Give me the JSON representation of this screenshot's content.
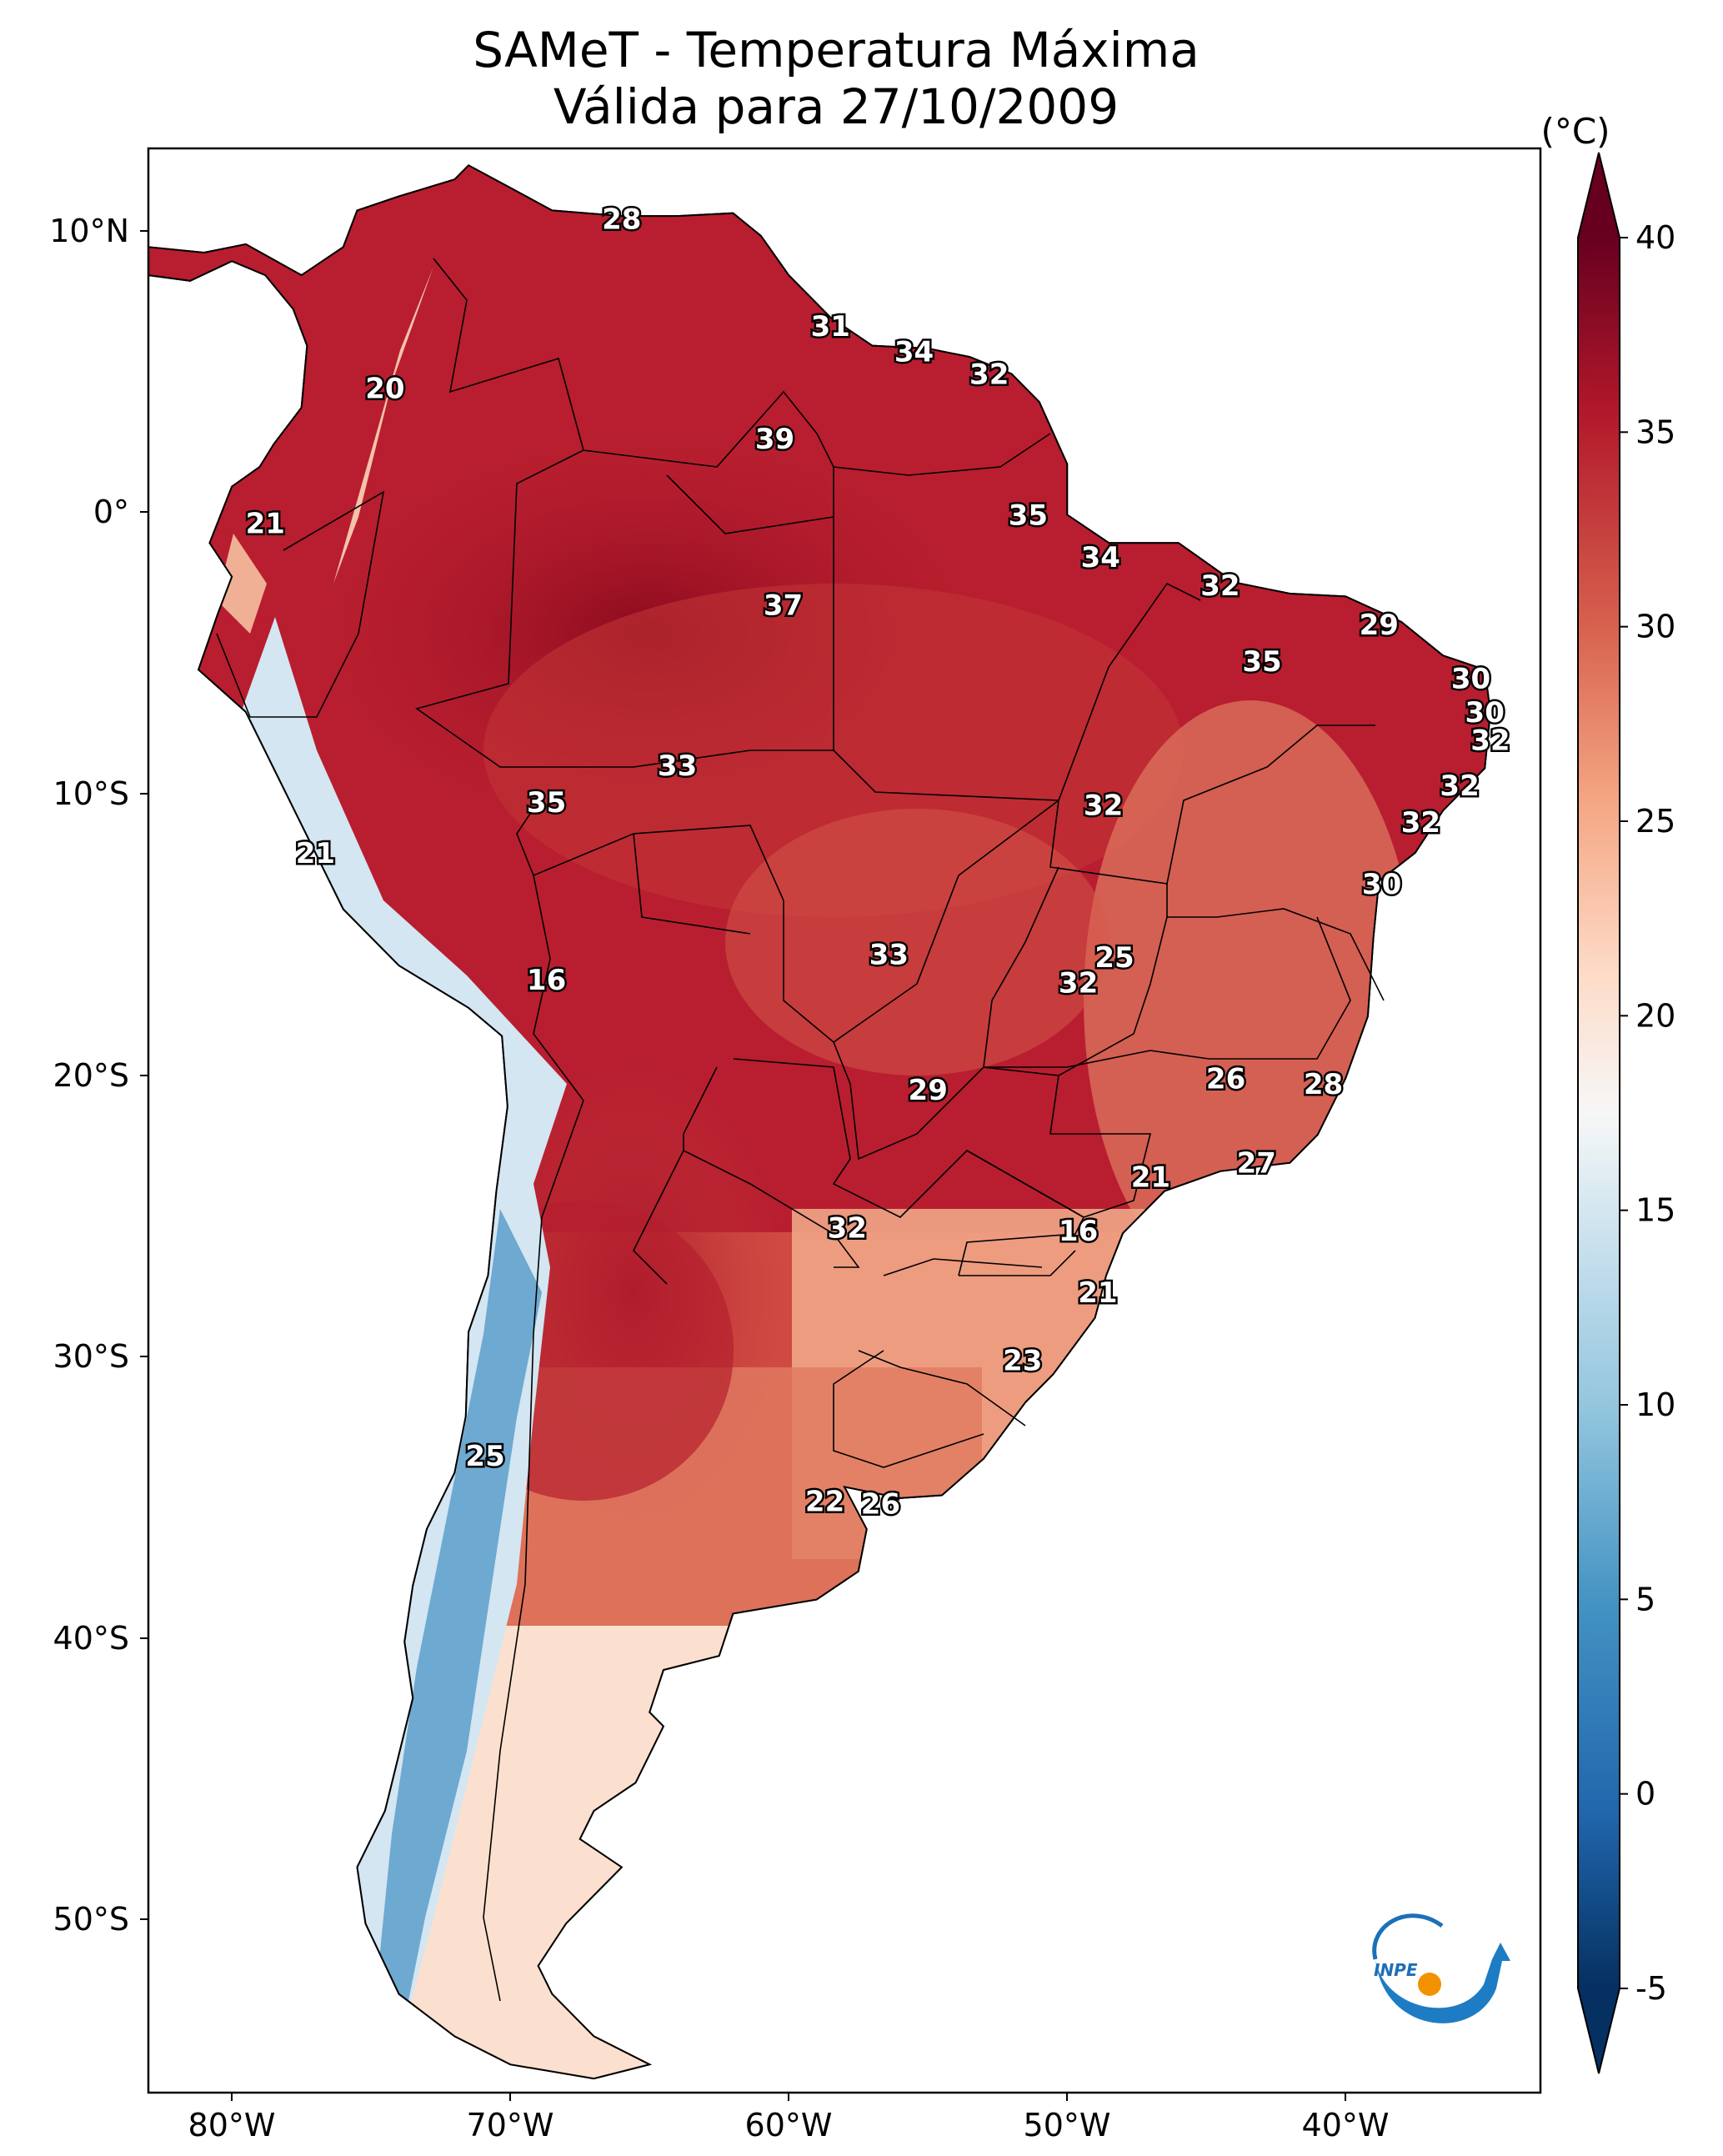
{
  "title": {
    "line1": "SAMeT - Temperatura Máxima",
    "line2": "Válida para 27/10/2009"
  },
  "colorbar": {
    "unit": "(°C)",
    "ticks": [
      "40",
      "35",
      "30",
      "25",
      "20",
      "15",
      "10",
      "5",
      "0",
      "-5"
    ],
    "range": [
      -5,
      40
    ]
  },
  "axes": {
    "lat_ticks": [
      "10°N",
      "0°",
      "10°S",
      "20°S",
      "30°S",
      "40°S",
      "50°S"
    ],
    "lon_ticks": [
      "80°W",
      "70°W",
      "60°W",
      "50°W",
      "40°W"
    ],
    "lat_range": [
      -56,
      13
    ],
    "lon_range": [
      -83,
      -33
    ]
  },
  "logo": {
    "name": "inpe-logo",
    "text": "INPE"
  },
  "labels": [
    {
      "text": "28",
      "lon": -66.0,
      "lat": 10.5
    },
    {
      "text": "20",
      "lon": -74.5,
      "lat": 4.5
    },
    {
      "text": "31",
      "lon": -58.5,
      "lat": 6.7
    },
    {
      "text": "34",
      "lon": -55.5,
      "lat": 5.8
    },
    {
      "text": "32",
      "lon": -52.8,
      "lat": 5.0
    },
    {
      "text": "39",
      "lon": -60.5,
      "lat": 2.7
    },
    {
      "text": "21",
      "lon": -78.8,
      "lat": -0.3
    },
    {
      "text": "35",
      "lon": -51.4,
      "lat": 0.0
    },
    {
      "text": "34",
      "lon": -48.8,
      "lat": -1.5
    },
    {
      "text": "37",
      "lon": -60.2,
      "lat": -3.2
    },
    {
      "text": "32",
      "lon": -44.5,
      "lat": -2.5
    },
    {
      "text": "29",
      "lon": -38.8,
      "lat": -3.9
    },
    {
      "text": "35",
      "lon": -43.0,
      "lat": -5.2
    },
    {
      "text": "30",
      "lon": -35.5,
      "lat": -5.8
    },
    {
      "text": "30",
      "lon": -35.0,
      "lat": -7.0
    },
    {
      "text": "32",
      "lon": -34.8,
      "lat": -8.0
    },
    {
      "text": "33",
      "lon": -64.0,
      "lat": -8.9
    },
    {
      "text": "35",
      "lon": -68.7,
      "lat": -10.2
    },
    {
      "text": "32",
      "lon": -48.7,
      "lat": -10.3
    },
    {
      "text": "32",
      "lon": -35.9,
      "lat": -9.6
    },
    {
      "text": "32",
      "lon": -37.3,
      "lat": -10.9
    },
    {
      "text": "21",
      "lon": -77.0,
      "lat": -12.0
    },
    {
      "text": "30",
      "lon": -38.7,
      "lat": -13.1
    },
    {
      "text": "33",
      "lon": -56.4,
      "lat": -15.6
    },
    {
      "text": "25",
      "lon": -48.3,
      "lat": -15.7
    },
    {
      "text": "16",
      "lon": -68.7,
      "lat": -16.5
    },
    {
      "text": "32",
      "lon": -49.6,
      "lat": -16.6
    },
    {
      "text": "26",
      "lon": -44.3,
      "lat": -20.0
    },
    {
      "text": "29",
      "lon": -55.0,
      "lat": -20.4
    },
    {
      "text": "28",
      "lon": -40.8,
      "lat": -20.2
    },
    {
      "text": "27",
      "lon": -43.2,
      "lat": -23.0
    },
    {
      "text": "21",
      "lon": -47.0,
      "lat": -23.5
    },
    {
      "text": "32",
      "lon": -57.9,
      "lat": -25.3
    },
    {
      "text": "16",
      "lon": -49.6,
      "lat": -25.4
    },
    {
      "text": "21",
      "lon": -48.9,
      "lat": -27.6
    },
    {
      "text": "23",
      "lon": -51.6,
      "lat": -30.0
    },
    {
      "text": "25",
      "lon": -70.9,
      "lat": -33.4
    },
    {
      "text": "22",
      "lon": -58.7,
      "lat": -35.0
    },
    {
      "text": "26",
      "lon": -56.7,
      "lat": -35.1
    }
  ]
}
